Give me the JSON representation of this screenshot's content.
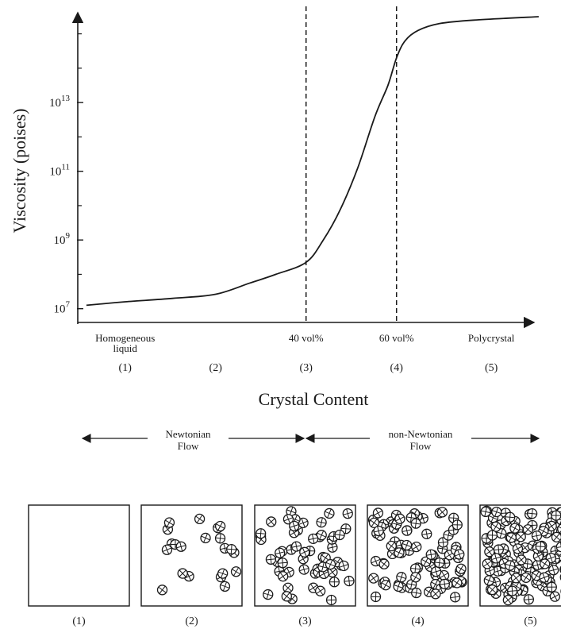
{
  "chart_data": {
    "type": "line",
    "ylabel": "Viscosity (poises)",
    "xlabel": "Crystal Content",
    "y_scale": "log",
    "y_ticks": [
      {
        "exp": 7,
        "base": "10",
        "sup": "7"
      },
      {
        "exp": 9,
        "base": "10",
        "sup": "9"
      },
      {
        "exp": 11,
        "base": "10",
        "sup": "11"
      },
      {
        "exp": 13,
        "base": "10",
        "sup": "13"
      }
    ],
    "ylim_exp": [
      6.6,
      15.8
    ],
    "xlim": [
      0,
      5.6
    ],
    "x_ticks": [
      {
        "x": 0.55,
        "idx": "(1)",
        "label": [
          "Homogeneous",
          "liquid"
        ]
      },
      {
        "x": 1.6,
        "idx": "(2)",
        "label": []
      },
      {
        "x": 2.65,
        "idx": "(3)",
        "label": [
          "40 vol%"
        ]
      },
      {
        "x": 3.7,
        "idx": "(4)",
        "label": [
          "60 vol%"
        ]
      },
      {
        "x": 4.8,
        "idx": "(5)",
        "label": [
          "Polycrystal"
        ]
      }
    ],
    "threshold_lines": [
      2.65,
      3.7
    ],
    "series": [
      {
        "x": [
          0.1,
          0.55,
          1.1,
          1.6,
          2.0,
          2.3,
          2.65,
          2.85,
          3.05,
          3.25,
          3.45,
          3.6,
          3.7,
          3.8,
          3.95,
          4.2,
          4.6,
          5.35
        ],
        "y": [
          7.1,
          7.2,
          7.3,
          7.42,
          7.75,
          8.0,
          8.35,
          9.0,
          9.9,
          11.1,
          12.6,
          13.5,
          14.3,
          14.8,
          15.1,
          15.3,
          15.4,
          15.5
        ]
      }
    ]
  },
  "flow_regions": {
    "newtonian": [
      "Newtonian",
      "Flow"
    ],
    "non_newtonian": [
      "non-Newtonian",
      "Flow"
    ]
  },
  "crystal_panels": [
    {
      "label": "(1)",
      "crystal_fraction": 0.0
    },
    {
      "label": "(2)",
      "crystal_fraction": 0.15
    },
    {
      "label": "(3)",
      "crystal_fraction": 0.4
    },
    {
      "label": "(4)",
      "crystal_fraction": 0.6
    },
    {
      "label": "(5)",
      "crystal_fraction": 0.9
    }
  ]
}
